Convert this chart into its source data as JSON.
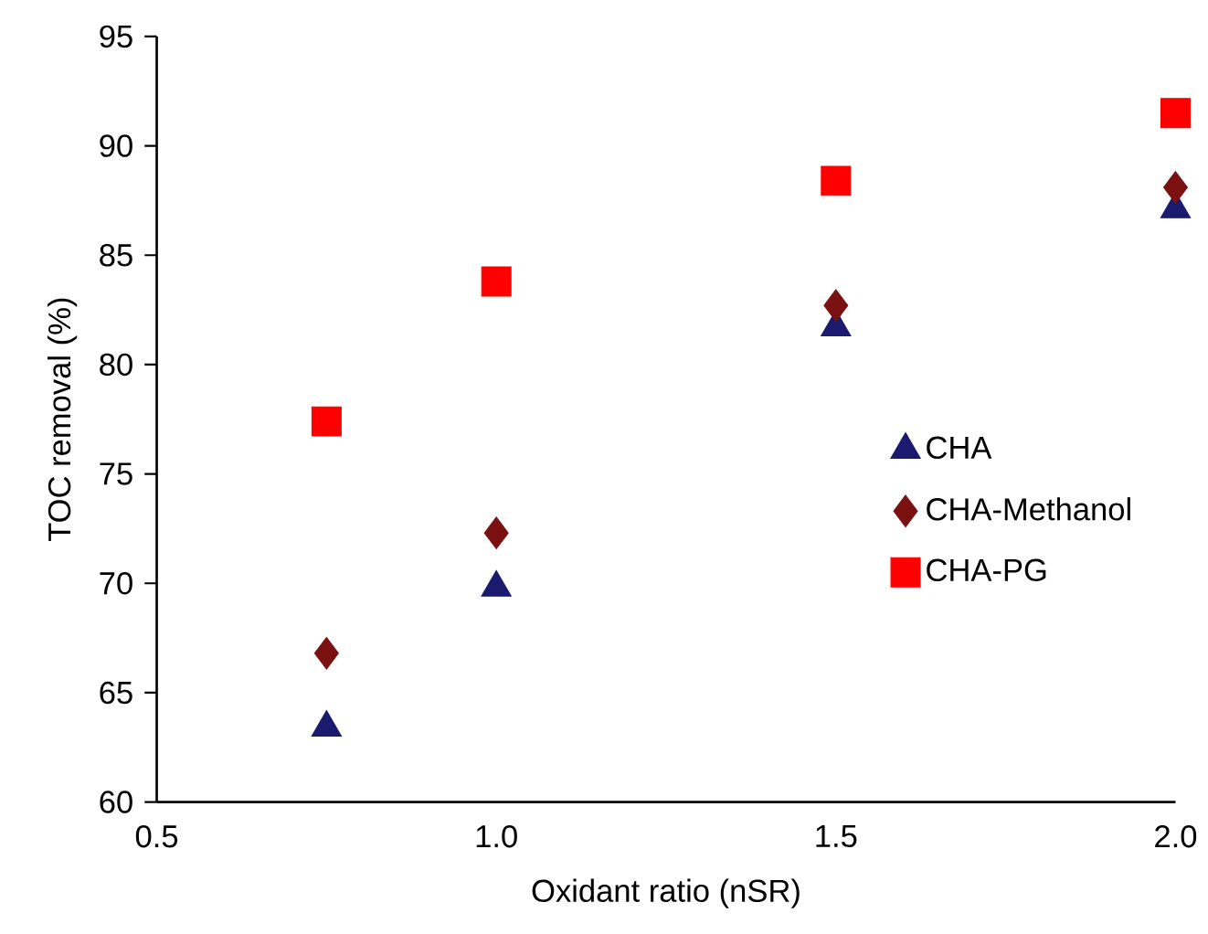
{
  "chart_data": {
    "type": "scatter",
    "xlabel": "Oxidant ratio (nSR)",
    "ylabel": "TOC removal (%)",
    "x": [
      0.75,
      1.0,
      1.5,
      2.0
    ],
    "series": [
      {
        "name": "CHA",
        "color": "#1a1a6e",
        "marker": "triangle",
        "values": [
          63.4,
          69.8,
          81.7,
          87.1
        ]
      },
      {
        "name": "CHA-Methanol",
        "color": "#7a1010",
        "marker": "diamond",
        "values": [
          66.8,
          72.3,
          82.7,
          88.1
        ]
      },
      {
        "name": "CHA-PG",
        "color": "#ff0000",
        "marker": "square",
        "values": [
          77.4,
          83.8,
          88.4,
          91.5
        ]
      }
    ],
    "xlim": [
      0.5,
      2.0
    ],
    "ylim": [
      60,
      95
    ],
    "xticks": [
      0.5,
      {
        "value": 1.0,
        "label": "1.0"
      },
      1.5,
      {
        "value": 2.0,
        "label": "2.0"
      }
    ],
    "yticks": [
      60,
      65,
      70,
      75,
      80,
      85,
      90,
      95
    ],
    "grid": false,
    "legend": "right"
  }
}
